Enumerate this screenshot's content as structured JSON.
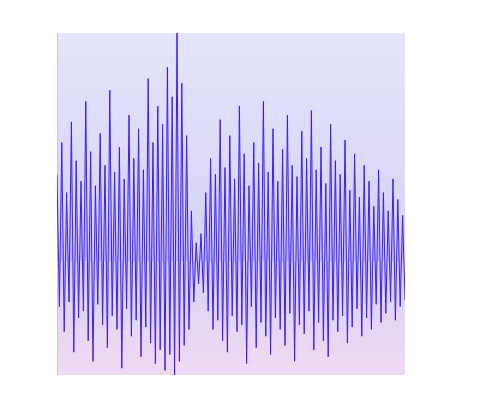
{
  "chart_data": {
    "type": "line",
    "color": "#3b1ff5",
    "tick_labels": false,
    "ylim": [
      -50,
      100
    ],
    "categories": [
      null,
      null,
      null,
      null,
      null,
      null,
      null,
      null,
      null,
      null,
      null,
      null,
      null,
      null,
      null,
      null,
      null,
      null,
      null,
      null,
      null,
      null,
      null,
      null,
      null,
      null,
      null,
      null,
      null,
      null,
      null,
      null,
      null,
      null,
      null,
      null,
      null,
      null,
      null,
      null,
      null,
      null,
      null,
      null,
      null,
      null,
      null,
      null,
      null,
      null,
      null,
      null,
      null,
      null,
      null,
      null,
      null,
      null,
      null,
      null,
      null,
      null,
      null,
      null,
      null,
      null,
      null,
      null,
      null,
      null,
      null,
      null,
      null,
      null,
      null,
      null,
      null,
      null,
      null,
      null,
      null,
      null,
      null,
      null,
      null,
      null,
      null,
      null,
      null,
      null,
      null,
      null,
      null,
      null,
      null,
      null,
      null,
      null,
      null,
      null,
      null,
      null,
      null,
      null,
      null,
      null,
      null,
      null,
      null,
      null,
      null,
      null,
      null,
      null,
      null,
      null,
      null,
      null,
      null,
      null,
      null,
      null,
      null,
      null,
      null,
      null,
      null,
      null,
      null,
      null,
      null,
      null,
      null,
      null,
      null,
      null,
      null,
      null,
      null,
      null,
      null,
      null,
      null,
      null,
      null,
      null
    ],
    "values": [
      38,
      -20,
      52,
      -31,
      30,
      -18,
      61,
      -40,
      44,
      -25,
      35,
      -22,
      70,
      -35,
      48,
      -44,
      33,
      -19,
      56,
      -28,
      42,
      -38,
      75,
      -24,
      39,
      -30,
      50,
      -47,
      36,
      -21,
      64,
      -33,
      45,
      -26,
      58,
      -42,
      40,
      -29,
      80,
      -36,
      52,
      -45,
      68,
      -39,
      60,
      -48,
      85,
      -41,
      72,
      -50,
      100,
      -44,
      78,
      -37,
      55,
      -30,
      22,
      -18,
      8,
      -10,
      12,
      -14,
      30,
      -22,
      45,
      -30,
      38,
      -26,
      62,
      -35,
      41,
      -40,
      55,
      -24,
      36,
      -31,
      68,
      -28,
      47,
      -45,
      33,
      -20,
      52,
      -38,
      43,
      -27,
      70,
      -33,
      39,
      -41,
      58,
      -25,
      35,
      -30,
      49,
      -37,
      64,
      -23,
      42,
      -44,
      37,
      -28,
      57,
      -32,
      45,
      -22,
      66,
      -39,
      40,
      -27,
      50,
      -35,
      34,
      -42,
      60,
      -26,
      44,
      -31,
      38,
      -24,
      53,
      -36,
      31,
      -29,
      47,
      -21,
      28,
      -33,
      42,
      -25,
      35,
      -30,
      24,
      -19,
      40,
      -27,
      30,
      -23,
      22,
      -18,
      36,
      -26,
      27,
      -20,
      20,
      -17
    ]
  }
}
